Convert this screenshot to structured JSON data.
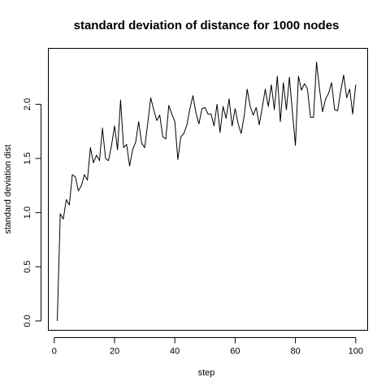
{
  "chart_data": {
    "type": "line",
    "title": "standard deviation of distance for 1000 nodes",
    "xlabel": "step",
    "ylabel": "standard deviation dist",
    "xlim": [
      -1.96,
      103.96
    ],
    "ylim": [
      -0.0865,
      2.5165
    ],
    "xticks": [
      0,
      20,
      40,
      60,
      80,
      100
    ],
    "xtick_labels": [
      "0",
      "20",
      "40",
      "60",
      "80",
      "100"
    ],
    "yticks": [
      0.0,
      0.5,
      1.0,
      1.5,
      2.0
    ],
    "ytick_labels": [
      "0.0",
      "0.5",
      "1.0",
      "1.5",
      "2.0"
    ],
    "grid": false,
    "line_color": "#000000",
    "x": [
      1,
      2,
      3,
      4,
      5,
      6,
      7,
      8,
      9,
      10,
      11,
      12,
      13,
      14,
      15,
      16,
      17,
      18,
      19,
      20,
      21,
      22,
      23,
      24,
      25,
      26,
      27,
      28,
      29,
      30,
      31,
      32,
      33,
      34,
      35,
      36,
      37,
      38,
      39,
      40,
      41,
      42,
      43,
      44,
      45,
      46,
      47,
      48,
      49,
      50,
      51,
      52,
      53,
      54,
      55,
      56,
      57,
      58,
      59,
      60,
      61,
      62,
      63,
      64,
      65,
      66,
      67,
      68,
      69,
      70,
      71,
      72,
      73,
      74,
      75,
      76,
      77,
      78,
      79,
      80,
      81,
      82,
      83,
      84,
      85,
      86,
      87,
      88,
      89,
      90,
      91,
      92,
      93,
      94,
      95,
      96,
      97,
      98,
      99,
      100
    ],
    "y": [
      0.0,
      0.99,
      0.94,
      1.12,
      1.07,
      1.35,
      1.33,
      1.2,
      1.25,
      1.35,
      1.3,
      1.6,
      1.46,
      1.53,
      1.48,
      1.78,
      1.5,
      1.48,
      1.62,
      1.8,
      1.58,
      2.04,
      1.6,
      1.63,
      1.43,
      1.58,
      1.65,
      1.84,
      1.64,
      1.6,
      1.82,
      2.06,
      1.95,
      1.85,
      1.9,
      1.7,
      1.68,
      1.99,
      1.91,
      1.84,
      1.49,
      1.7,
      1.73,
      1.81,
      1.96,
      2.08,
      1.92,
      1.82,
      1.96,
      1.97,
      1.91,
      1.91,
      1.8,
      2.0,
      1.74,
      1.98,
      1.87,
      2.05,
      1.8,
      1.96,
      1.82,
      1.73,
      1.89,
      2.14,
      1.98,
      1.9,
      1.97,
      1.81,
      1.97,
      2.14,
      1.98,
      2.18,
      1.95,
      2.26,
      1.84,
      2.2,
      1.95,
      2.25,
      1.93,
      1.62,
      2.26,
      2.13,
      2.19,
      2.14,
      1.88,
      1.88,
      2.39,
      2.14,
      1.93,
      2.05,
      2.1,
      2.2,
      1.95,
      1.94,
      2.12,
      2.27,
      2.06,
      2.14,
      1.91,
      2.18
    ]
  }
}
